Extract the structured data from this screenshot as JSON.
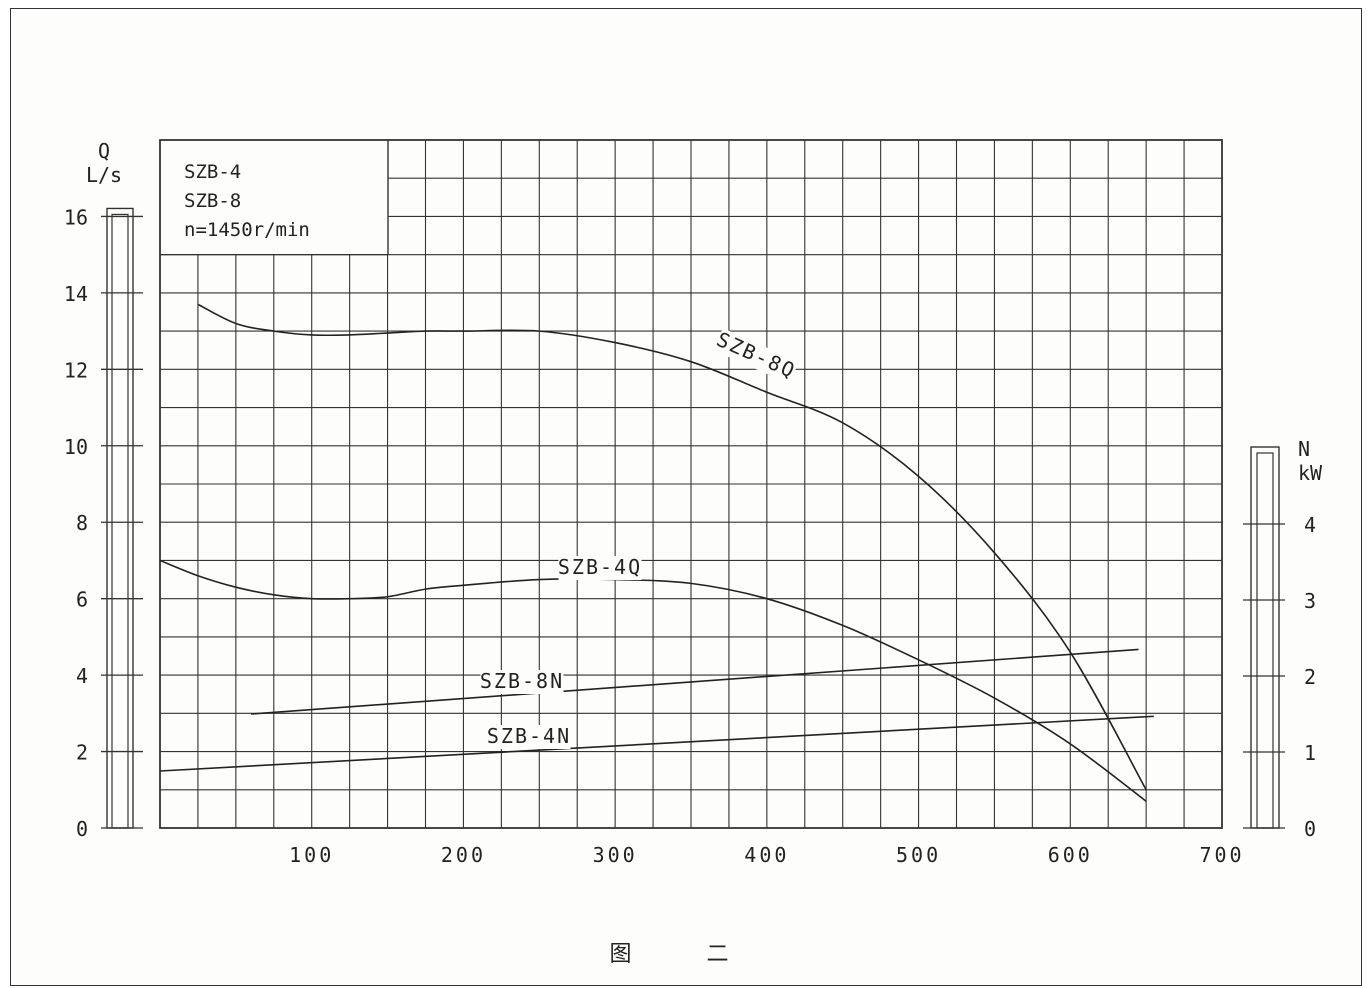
{
  "chart_data": {
    "type": "line",
    "title_lines": [
      "SZB-4",
      "SZB-8",
      "n=1450r/min"
    ],
    "xlabel": "",
    "x_ticks": [
      100,
      200,
      300,
      400,
      500,
      600,
      700
    ],
    "xlim": [
      0,
      700
    ],
    "y_left": {
      "label_top": "Q",
      "label_unit": "L/s",
      "lim": [
        0,
        18
      ],
      "ticks": [
        0,
        2,
        4,
        6,
        8,
        10,
        12,
        14,
        16
      ]
    },
    "y_right": {
      "label_top": "N",
      "label_unit": "kW",
      "ticks": [
        0,
        1,
        2,
        3,
        4
      ]
    },
    "grid": true,
    "series": [
      {
        "name": "SZB-8Q",
        "axis": "left",
        "x": [
          25,
          50,
          75,
          100,
          125,
          150,
          175,
          200,
          250,
          300,
          350,
          400,
          450,
          500,
          550,
          600,
          650
        ],
        "y": [
          13.7,
          13.2,
          13.0,
          12.9,
          12.9,
          12.95,
          13.0,
          13.0,
          13.0,
          12.7,
          12.2,
          11.4,
          10.6,
          9.2,
          7.2,
          4.6,
          1.0
        ]
      },
      {
        "name": "SZB-4Q",
        "axis": "left",
        "x": [
          0,
          25,
          50,
          75,
          100,
          125,
          150,
          175,
          200,
          250,
          300,
          350,
          400,
          450,
          500,
          550,
          600,
          650
        ],
        "y": [
          7.0,
          6.6,
          6.3,
          6.1,
          6.0,
          6.0,
          6.05,
          6.25,
          6.35,
          6.5,
          6.5,
          6.4,
          6.0,
          5.3,
          4.4,
          3.4,
          2.2,
          0.7
        ]
      },
      {
        "name": "SZB-8N",
        "axis": "right",
        "x": [
          60,
          645
        ],
        "y": [
          1.5,
          2.35
        ]
      },
      {
        "name": "SZB-4N",
        "axis": "right",
        "x": [
          0,
          655
        ],
        "y": [
          0.75,
          1.47
        ]
      }
    ]
  },
  "caption": "图 二"
}
